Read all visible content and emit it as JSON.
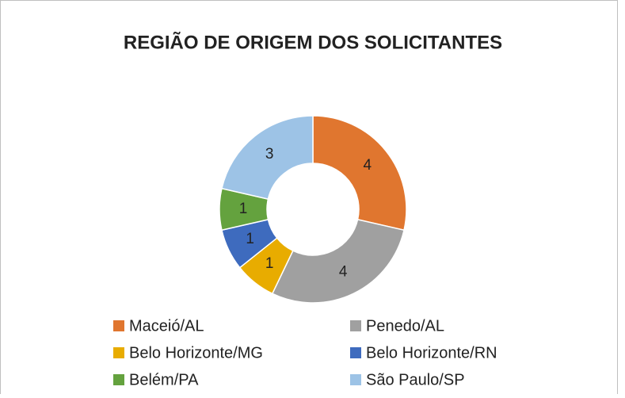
{
  "chart_data": {
    "type": "pie",
    "donut": true,
    "title": "REGIÃO DE ORIGEM DOS SOLICITANTES",
    "categories": [
      "Maceió/AL",
      "Penedo/AL",
      "Belo Horizonte/MG",
      "Belo Horizonte/RN",
      "Belém/PA",
      "São Paulo/SP"
    ],
    "values": [
      4,
      4,
      1,
      1,
      1,
      3
    ],
    "colors": [
      "#E0762F",
      "#A0A0A0",
      "#E8AC00",
      "#3E6BBE",
      "#64A23E",
      "#9DC3E6"
    ]
  }
}
